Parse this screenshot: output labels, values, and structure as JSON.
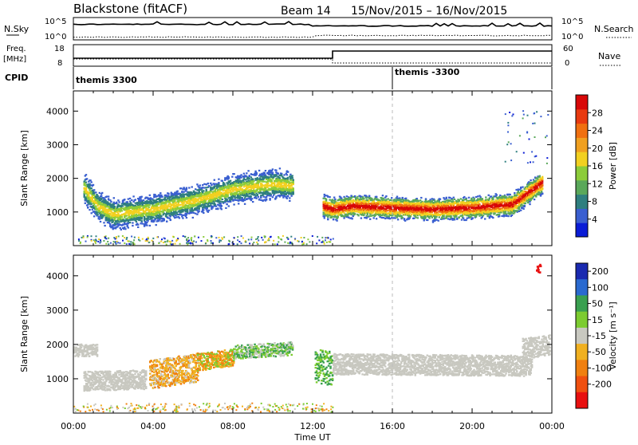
{
  "header": {
    "station": "Blackstone (fitACF)",
    "beam": "Beam 14",
    "dates": "15/Nov/2015 – 16/Nov/2015"
  },
  "noise_panel": {
    "left_label": "N.Sky",
    "right_label": "N.Search",
    "left_ticks": [
      "10^5",
      "10^0"
    ],
    "right_ticks": [
      "10^5",
      "10^0"
    ]
  },
  "freq_panel": {
    "left_label_1": "Freq.",
    "left_label_2": "[MHz]",
    "right_label": "Nave",
    "left_ticks": [
      "18",
      "8"
    ],
    "right_ticks": [
      "60",
      "0"
    ]
  },
  "cpid_panel": {
    "label": "CPID",
    "segments": [
      {
        "name": "themis 3300",
        "start_hour": 0
      },
      {
        "name": "themis -3300",
        "start_hour": 16
      }
    ]
  },
  "power_panel": {
    "ylabel": "Slant Range [km]",
    "yticks": [
      1000,
      2000,
      3000,
      4000
    ],
    "ylim": [
      0,
      4600
    ],
    "colorbar": {
      "title": "Power [dB]",
      "ticks": [
        "4",
        "8",
        "12",
        "16",
        "20",
        "24",
        "28"
      ],
      "colors": [
        "#0a1cd6",
        "#3a5fd0",
        "#2f7f7f",
        "#5aa85a",
        "#8ccc3a",
        "#f2d020",
        "#f0a020",
        "#f07010",
        "#e83a10",
        "#d80808"
      ]
    }
  },
  "velocity_panel": {
    "ylabel": "Slant Range [km]",
    "yticks": [
      1000,
      2000,
      3000,
      4000
    ],
    "ylim": [
      0,
      4600
    ],
    "colorbar": {
      "title": "Velocity [m s⁻¹]",
      "ticks": [
        "200",
        "100",
        "50",
        "15",
        "-15",
        "-50",
        "-100",
        "-200"
      ],
      "colors": [
        "#1a2ab0",
        "#2a6ad0",
        "#3aa050",
        "#7ccc30",
        "#c8c8c0",
        "#f0b020",
        "#f08010",
        "#f05010",
        "#e81010"
      ]
    }
  },
  "x_axis": {
    "label": "Time UT",
    "ticks": [
      "00:00",
      "04:00",
      "08:00",
      "12:00",
      "16:00",
      "20:00",
      "00:00"
    ]
  },
  "chart_data": {
    "type": "heatmap",
    "x_range_hours": [
      0,
      24
    ],
    "ylim": [
      0,
      4600
    ],
    "power_bands": [
      {
        "x": [
          0.5,
          1.2,
          2.0,
          4.0,
          6.0,
          8.0,
          10.0,
          11.0
        ],
        "y": [
          1750,
          1200,
          950,
          1100,
          1350,
          1700,
          1850,
          1800
        ],
        "level": "mid"
      },
      {
        "x": [
          12.5,
          13.0,
          14.0,
          16.0,
          18.0,
          20.0,
          22.0,
          23.5
        ],
        "y": [
          1200,
          1100,
          1200,
          1150,
          1100,
          1150,
          1250,
          1900
        ],
        "level": "high"
      }
    ],
    "velocity_bands": [
      {
        "x": [
          1.0,
          3.5
        ],
        "y": [
          950,
          1000
        ],
        "color": "gray"
      },
      {
        "x": [
          3.8,
          6.0
        ],
        "y": [
          1200,
          1300
        ],
        "color": "orange"
      },
      {
        "x": [
          12.8,
          23.0
        ],
        "y": [
          1400,
          1400
        ],
        "color": "gray"
      }
    ]
  }
}
